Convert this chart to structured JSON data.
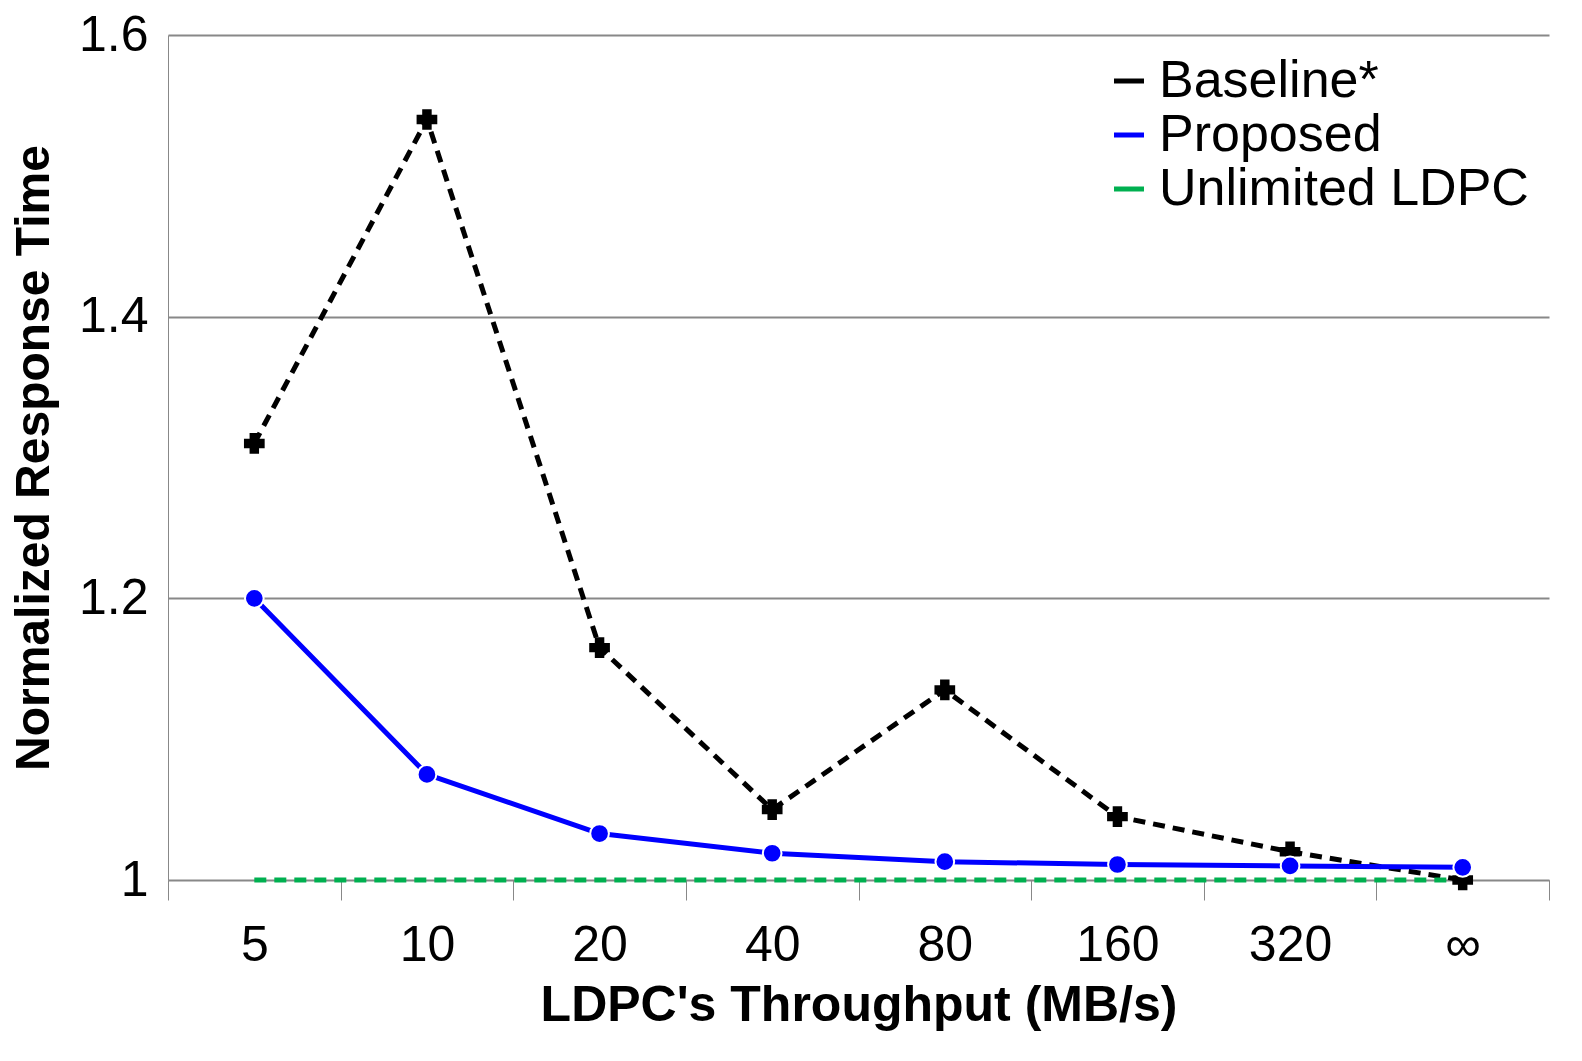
{
  "chart_data": {
    "type": "line",
    "xlabel": "LDPC's Throughput (MB/s)",
    "ylabel": "Normalized Response Time",
    "categories": [
      "5",
      "10",
      "20",
      "40",
      "80",
      "160",
      "320",
      "∞"
    ],
    "series": [
      {
        "name": "Baseline*",
        "color": "#000000",
        "marker": "cross",
        "line_style": "dashed",
        "values": [
          1.31,
          1.54,
          1.165,
          1.05,
          1.135,
          1.045,
          1.02,
          1.0
        ]
      },
      {
        "name": "Proposed",
        "color": "#0000ff",
        "marker": "circle",
        "line_style": "solid",
        "values": [
          1.2,
          1.075,
          1.033,
          1.019,
          1.013,
          1.011,
          1.01,
          1.009
        ]
      },
      {
        "name": "Unlimited LDPC",
        "color": "#00b050",
        "marker": "none",
        "line_style": "dashed",
        "values": [
          1.0,
          1.0,
          1.0,
          1.0,
          1.0,
          1.0,
          1.0,
          1.0
        ]
      }
    ],
    "ylim": [
      1,
      1.6
    ],
    "yticks": [
      1,
      1.2,
      1.4,
      1.6
    ],
    "grid": "y",
    "legend": "top right"
  }
}
